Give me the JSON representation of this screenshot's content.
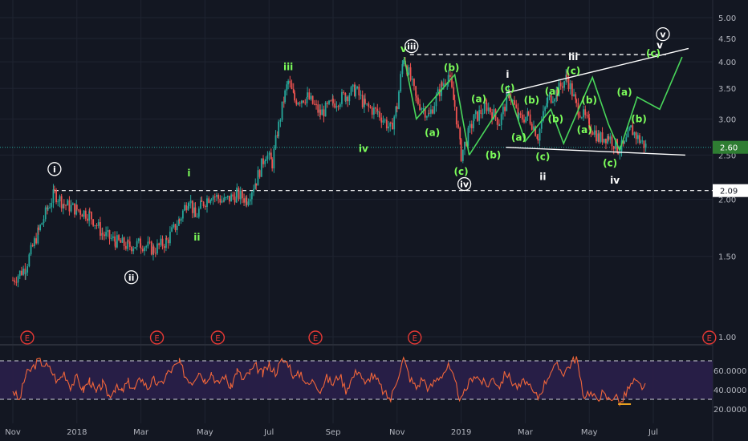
{
  "chart_data": {
    "type": "line",
    "colors": {
      "background": "#131722",
      "grid": "#1f2431",
      "axis_text": "#b2b5be",
      "up_candle": "#26a69a",
      "down_candle": "#ef5350",
      "wave_label": "#7cfc5a",
      "white_label": "#ffffff",
      "rsi_line": "#f0653a",
      "rsi_band": "#2a1f4a",
      "earnings": "#e53935",
      "current_price_line": "#26a69a",
      "price_tag_bg": "#2e7d32"
    },
    "x_axis": {
      "ticks": [
        "Nov",
        "2018",
        "Mar",
        "May",
        "Jul",
        "Sep",
        "Nov",
        "2019",
        "Mar",
        "May",
        "Jul"
      ],
      "tick_month_index": [
        0,
        2,
        4,
        6,
        8,
        10,
        12,
        14,
        16,
        18,
        20
      ]
    },
    "price_axis": {
      "scale": "log",
      "ticks": [
        "5.00",
        "4.50",
        "4.00",
        "3.50",
        "3.00",
        "2.50",
        "2.00",
        "1.50",
        "1.00"
      ],
      "tick_values": [
        5.0,
        4.5,
        4.0,
        3.5,
        3.0,
        2.5,
        2.0,
        1.5,
        1.0
      ],
      "current_price": 2.6,
      "current_price_label": "2.60",
      "reference_price": 2.09,
      "reference_price_label": "2.09"
    },
    "rsi_axis": {
      "ticks": [
        "60.0000",
        "40.0000",
        "20.0000"
      ],
      "tick_values": [
        60,
        40,
        20
      ],
      "band": [
        30,
        70
      ]
    },
    "price_series": [
      [
        0,
        1.33
      ],
      [
        0.4,
        1.42
      ],
      [
        0.8,
        1.7
      ],
      [
        1.1,
        1.92
      ],
      [
        1.3,
        2.06
      ],
      [
        1.6,
        1.95
      ],
      [
        2.0,
        1.9
      ],
      [
        2.4,
        1.85
      ],
      [
        2.8,
        1.68
      ],
      [
        3.2,
        1.62
      ],
      [
        3.6,
        1.58
      ],
      [
        4.0,
        1.6
      ],
      [
        4.4,
        1.55
      ],
      [
        4.8,
        1.62
      ],
      [
        5.2,
        1.8
      ],
      [
        5.5,
        2.02
      ],
      [
        5.7,
        1.82
      ],
      [
        5.9,
        1.95
      ],
      [
        6.2,
        2.05
      ],
      [
        6.6,
        1.98
      ],
      [
        7.0,
        2.05
      ],
      [
        7.3,
        2.0
      ],
      [
        7.6,
        2.2
      ],
      [
        7.9,
        2.52
      ],
      [
        8.1,
        2.4
      ],
      [
        8.3,
        2.9
      ],
      [
        8.5,
        3.4
      ],
      [
        8.6,
        3.62
      ],
      [
        8.8,
        3.3
      ],
      [
        9.2,
        3.35
      ],
      [
        9.6,
        3.08
      ],
      [
        10.0,
        3.25
      ],
      [
        10.4,
        3.38
      ],
      [
        10.7,
        3.48
      ],
      [
        11.0,
        3.2
      ],
      [
        11.4,
        3.1
      ],
      [
        11.8,
        2.85
      ],
      [
        12.0,
        3.2
      ],
      [
        12.2,
        4.1
      ],
      [
        12.6,
        3.3
      ],
      [
        13.0,
        3.05
      ],
      [
        13.4,
        3.55
      ],
      [
        13.6,
        3.75
      ],
      [
        13.8,
        3.2
      ],
      [
        14.0,
        2.5
      ],
      [
        14.4,
        3.0
      ],
      [
        14.8,
        3.2
      ],
      [
        15.2,
        2.95
      ],
      [
        15.5,
        3.42
      ],
      [
        15.8,
        3.0
      ],
      [
        16.1,
        3.05
      ],
      [
        16.4,
        2.75
      ],
      [
        16.7,
        3.3
      ],
      [
        17.0,
        3.45
      ],
      [
        17.3,
        3.7
      ],
      [
        17.6,
        3.2
      ],
      [
        18.0,
        2.92
      ],
      [
        18.3,
        2.72
      ],
      [
        18.6,
        2.75
      ],
      [
        18.9,
        2.58
      ],
      [
        19.1,
        2.62
      ],
      [
        19.3,
        2.85
      ],
      [
        19.6,
        2.68
      ],
      [
        19.8,
        2.6
      ]
    ],
    "wave_paths": [
      {
        "points": [
          [
            12.22,
            4.1
          ],
          [
            12.6,
            3.0
          ],
          [
            13.8,
            3.75
          ],
          [
            14.25,
            2.5
          ]
        ]
      },
      {
        "points": [
          [
            14.25,
            2.5
          ],
          [
            15.5,
            3.42
          ],
          [
            16.0,
            2.68
          ],
          [
            16.8,
            3.15
          ],
          [
            17.2,
            2.65
          ],
          [
            18.1,
            3.7
          ],
          [
            18.6,
            2.92
          ],
          [
            18.95,
            2.56
          ]
        ]
      },
      {
        "points": [
          [
            18.95,
            2.56
          ],
          [
            19.5,
            3.35
          ],
          [
            20.2,
            3.15
          ],
          [
            20.9,
            4.1
          ]
        ]
      }
    ],
    "trend_lines": [
      {
        "points": [
          [
            15.4,
            3.42
          ],
          [
            21.1,
            4.28
          ]
        ],
        "style": "solid"
      },
      {
        "points": [
          [
            15.4,
            2.6
          ],
          [
            21.0,
            2.5
          ]
        ],
        "style": "solid"
      },
      {
        "points": [
          [
            12.4,
            4.15
          ],
          [
            20.4,
            4.15
          ]
        ],
        "style": "dashed"
      }
    ],
    "annotations": [
      {
        "text": "i",
        "x": 1.3,
        "price": 2.33,
        "style": "circled-white"
      },
      {
        "text": "ii",
        "x": 3.7,
        "price": 1.35,
        "style": "circled-white"
      },
      {
        "text": "i",
        "x": 5.5,
        "price": 2.28,
        "style": "green"
      },
      {
        "text": "ii",
        "x": 5.75,
        "price": 1.65,
        "style": "green"
      },
      {
        "text": "iii",
        "x": 8.6,
        "price": 3.9,
        "style": "green"
      },
      {
        "text": "iv",
        "x": 10.95,
        "price": 2.58,
        "style": "green"
      },
      {
        "text": "v",
        "x": 12.2,
        "price": 4.27,
        "style": "green"
      },
      {
        "text": "iii",
        "x": 12.45,
        "price": 4.33,
        "style": "circled-white"
      },
      {
        "text": "(b)",
        "x": 13.7,
        "price": 3.88,
        "style": "green"
      },
      {
        "text": "(a)",
        "x": 13.1,
        "price": 2.8,
        "style": "green"
      },
      {
        "text": "(c)",
        "x": 14.0,
        "price": 2.3,
        "style": "green"
      },
      {
        "text": "iv",
        "x": 14.1,
        "price": 2.16,
        "style": "circled-white"
      },
      {
        "text": "i",
        "x": 15.45,
        "price": 3.75,
        "style": "white"
      },
      {
        "text": "(c)",
        "x": 15.45,
        "price": 3.5,
        "style": "green"
      },
      {
        "text": "(a)",
        "x": 14.55,
        "price": 3.32,
        "style": "green"
      },
      {
        "text": "(b)",
        "x": 15.0,
        "price": 2.5,
        "style": "green"
      },
      {
        "text": "(a)",
        "x": 15.8,
        "price": 2.73,
        "style": "green"
      },
      {
        "text": "(b)",
        "x": 16.2,
        "price": 3.3,
        "style": "green"
      },
      {
        "text": "(c)",
        "x": 16.55,
        "price": 2.48,
        "style": "green"
      },
      {
        "text": "ii",
        "x": 16.55,
        "price": 2.24,
        "style": "white"
      },
      {
        "text": "(a)",
        "x": 16.85,
        "price": 3.45,
        "style": "green"
      },
      {
        "text": "(b)",
        "x": 16.95,
        "price": 3.0,
        "style": "green"
      },
      {
        "text": "(c)",
        "x": 17.5,
        "price": 3.82,
        "style": "green"
      },
      {
        "text": "iii",
        "x": 17.5,
        "price": 4.1,
        "style": "white"
      },
      {
        "text": "(b)",
        "x": 18.0,
        "price": 3.3,
        "style": "green"
      },
      {
        "text": "(a)",
        "x": 17.85,
        "price": 2.84,
        "style": "green"
      },
      {
        "text": "(c)",
        "x": 18.65,
        "price": 2.4,
        "style": "green"
      },
      {
        "text": "iv",
        "x": 18.8,
        "price": 2.2,
        "style": "white"
      },
      {
        "text": "(a)",
        "x": 19.1,
        "price": 3.43,
        "style": "green"
      },
      {
        "text": "(b)",
        "x": 19.55,
        "price": 3.0,
        "style": "green"
      },
      {
        "text": "(c)",
        "x": 20.0,
        "price": 4.18,
        "style": "green"
      },
      {
        "text": "v",
        "x": 20.2,
        "price": 4.35,
        "style": "white"
      },
      {
        "text": "v",
        "x": 20.3,
        "price": 4.6,
        "style": "circled-white"
      }
    ],
    "earnings_markers": [
      {
        "text": "E",
        "x": 0.45
      },
      {
        "text": "E",
        "x": 4.5
      },
      {
        "text": "E",
        "x": 6.4
      },
      {
        "text": "E",
        "x": 9.45
      },
      {
        "text": "E",
        "x": 12.55
      },
      {
        "text": "E",
        "x": 21.75
      }
    ],
    "rsi_series": [
      [
        0,
        40
      ],
      [
        0.2,
        28
      ],
      [
        0.4,
        55
      ],
      [
        0.6,
        62
      ],
      [
        0.8,
        70
      ],
      [
        1.0,
        66
      ],
      [
        1.2,
        60
      ],
      [
        1.4,
        48
      ],
      [
        1.6,
        58
      ],
      [
        1.8,
        44
      ],
      [
        2.0,
        52
      ],
      [
        2.2,
        40
      ],
      [
        2.4,
        50
      ],
      [
        2.6,
        36
      ],
      [
        2.8,
        46
      ],
      [
        3.0,
        34
      ],
      [
        3.2,
        42
      ],
      [
        3.4,
        38
      ],
      [
        3.6,
        48
      ],
      [
        3.8,
        40
      ],
      [
        4.0,
        52
      ],
      [
        4.2,
        42
      ],
      [
        4.4,
        50
      ],
      [
        4.6,
        44
      ],
      [
        4.8,
        56
      ],
      [
        5.0,
        62
      ],
      [
        5.2,
        68
      ],
      [
        5.4,
        54
      ],
      [
        5.6,
        48
      ],
      [
        5.8,
        60
      ],
      [
        6.0,
        50
      ],
      [
        6.2,
        58
      ],
      [
        6.4,
        46
      ],
      [
        6.6,
        55
      ],
      [
        6.8,
        42
      ],
      [
        7.0,
        60
      ],
      [
        7.2,
        50
      ],
      [
        7.4,
        58
      ],
      [
        7.6,
        64
      ],
      [
        7.8,
        56
      ],
      [
        8.0,
        66
      ],
      [
        8.2,
        58
      ],
      [
        8.4,
        70
      ],
      [
        8.6,
        68
      ],
      [
        8.8,
        52
      ],
      [
        9.0,
        58
      ],
      [
        9.2,
        44
      ],
      [
        9.4,
        50
      ],
      [
        9.6,
        40
      ],
      [
        9.8,
        52
      ],
      [
        10.0,
        46
      ],
      [
        10.2,
        56
      ],
      [
        10.4,
        40
      ],
      [
        10.6,
        52
      ],
      [
        10.8,
        62
      ],
      [
        11.0,
        44
      ],
      [
        11.2,
        56
      ],
      [
        11.4,
        48
      ],
      [
        11.6,
        36
      ],
      [
        11.8,
        30
      ],
      [
        12.0,
        52
      ],
      [
        12.2,
        72
      ],
      [
        12.4,
        52
      ],
      [
        12.6,
        42
      ],
      [
        12.8,
        52
      ],
      [
        13.0,
        40
      ],
      [
        13.2,
        50
      ],
      [
        13.4,
        56
      ],
      [
        13.6,
        64
      ],
      [
        13.8,
        48
      ],
      [
        14.0,
        28
      ],
      [
        14.2,
        44
      ],
      [
        14.4,
        56
      ],
      [
        14.6,
        50
      ],
      [
        14.8,
        44
      ],
      [
        15.0,
        52
      ],
      [
        15.2,
        44
      ],
      [
        15.4,
        58
      ],
      [
        15.6,
        48
      ],
      [
        15.8,
        42
      ],
      [
        16.0,
        50
      ],
      [
        16.2,
        38
      ],
      [
        16.4,
        32
      ],
      [
        16.6,
        46
      ],
      [
        16.8,
        60
      ],
      [
        17.0,
        64
      ],
      [
        17.2,
        58
      ],
      [
        17.4,
        66
      ],
      [
        17.6,
        74
      ],
      [
        17.8,
        34
      ],
      [
        18.0,
        38
      ],
      [
        18.2,
        30
      ],
      [
        18.4,
        36
      ],
      [
        18.6,
        30
      ],
      [
        18.8,
        34
      ],
      [
        19.0,
        26
      ],
      [
        19.2,
        40
      ],
      [
        19.4,
        48
      ],
      [
        19.6,
        44
      ],
      [
        19.8,
        42
      ]
    ]
  }
}
